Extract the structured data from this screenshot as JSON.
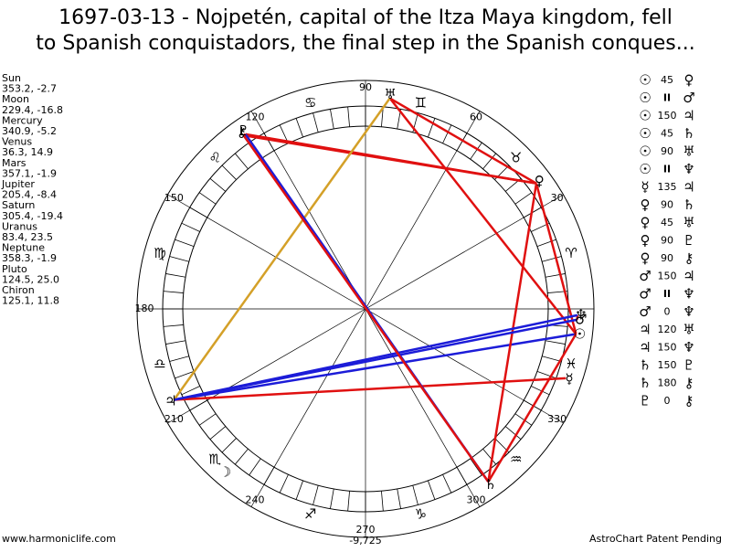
{
  "header": {
    "title_lines": [
      "1697-03-13 - Nojpetén, capital of the Itza Maya kingdom, fell",
      "to Spanish conquistadors, the final step in the Spanish conques..."
    ]
  },
  "planets": [
    {
      "name": "Sun",
      "glyph": "☉",
      "position": "353.2, -2.7"
    },
    {
      "name": "Moon",
      "glyph": "☽",
      "position": "229.4, -16.8"
    },
    {
      "name": "Mercury",
      "glyph": "☿",
      "position": "340.9, -5.2"
    },
    {
      "name": "Venus",
      "glyph": "♀",
      "position": "36.3, 14.9"
    },
    {
      "name": "Mars",
      "glyph": "♂",
      "position": "357.1, -1.9"
    },
    {
      "name": "Jupiter",
      "glyph": "♃",
      "position": "205.4, -8.4"
    },
    {
      "name": "Saturn",
      "glyph": "♄",
      "position": "305.4, -19.4"
    },
    {
      "name": "Uranus",
      "glyph": "♅",
      "position": "83.4, 23.5"
    },
    {
      "name": "Neptune",
      "glyph": "♆",
      "position": "358.3, -1.9"
    },
    {
      "name": "Pluto",
      "glyph": "♇",
      "position": "124.5, 25.0"
    },
    {
      "name": "Chiron",
      "glyph": "⚷",
      "position": "125.1, 11.8"
    }
  ],
  "aspects": [
    [
      "☉",
      "45",
      "♀"
    ],
    [
      "☉",
      "II",
      "♂"
    ],
    [
      "☉",
      "150",
      "♃"
    ],
    [
      "☉",
      "45",
      "♄"
    ],
    [
      "☉",
      "90",
      "♅"
    ],
    [
      "☉",
      "II",
      "♆"
    ],
    [
      "☿",
      "135",
      "♃"
    ],
    [
      "♀",
      "90",
      "♄"
    ],
    [
      "♀",
      "45",
      "♅"
    ],
    [
      "♀",
      "90",
      "♇"
    ],
    [
      "♀",
      "90",
      "⚷"
    ],
    [
      "♂",
      "150",
      "♃"
    ],
    [
      "♂",
      "II",
      "♆"
    ],
    [
      "♂",
      "0",
      "♆"
    ],
    [
      "♃",
      "120",
      "♅"
    ],
    [
      "♃",
      "150",
      "♆"
    ],
    [
      "♄",
      "150",
      "♇"
    ],
    [
      "♄",
      "180",
      "⚷"
    ],
    [
      "♇",
      "0",
      "⚷"
    ]
  ],
  "aspect_colors": {
    "0": "#e01010",
    "45": "#e01010",
    "90": "#e01010",
    "135": "#e01010",
    "180": "#e01010",
    "150": "#1c1cd8",
    "120": "#d4a028"
  },
  "wheel": {
    "degree_labels": [
      30,
      60,
      90,
      120,
      150,
      180,
      210,
      240,
      270,
      300,
      330
    ],
    "signs": [
      "♈",
      "♉",
      "♊",
      "♋",
      "♌",
      "♍",
      "♎",
      "♏",
      "♐",
      "♑",
      "♒",
      "♓"
    ]
  },
  "footer": {
    "left": "www.harmoniclife.com",
    "center": "-9,725",
    "right": "AstroChart Patent Pending"
  }
}
